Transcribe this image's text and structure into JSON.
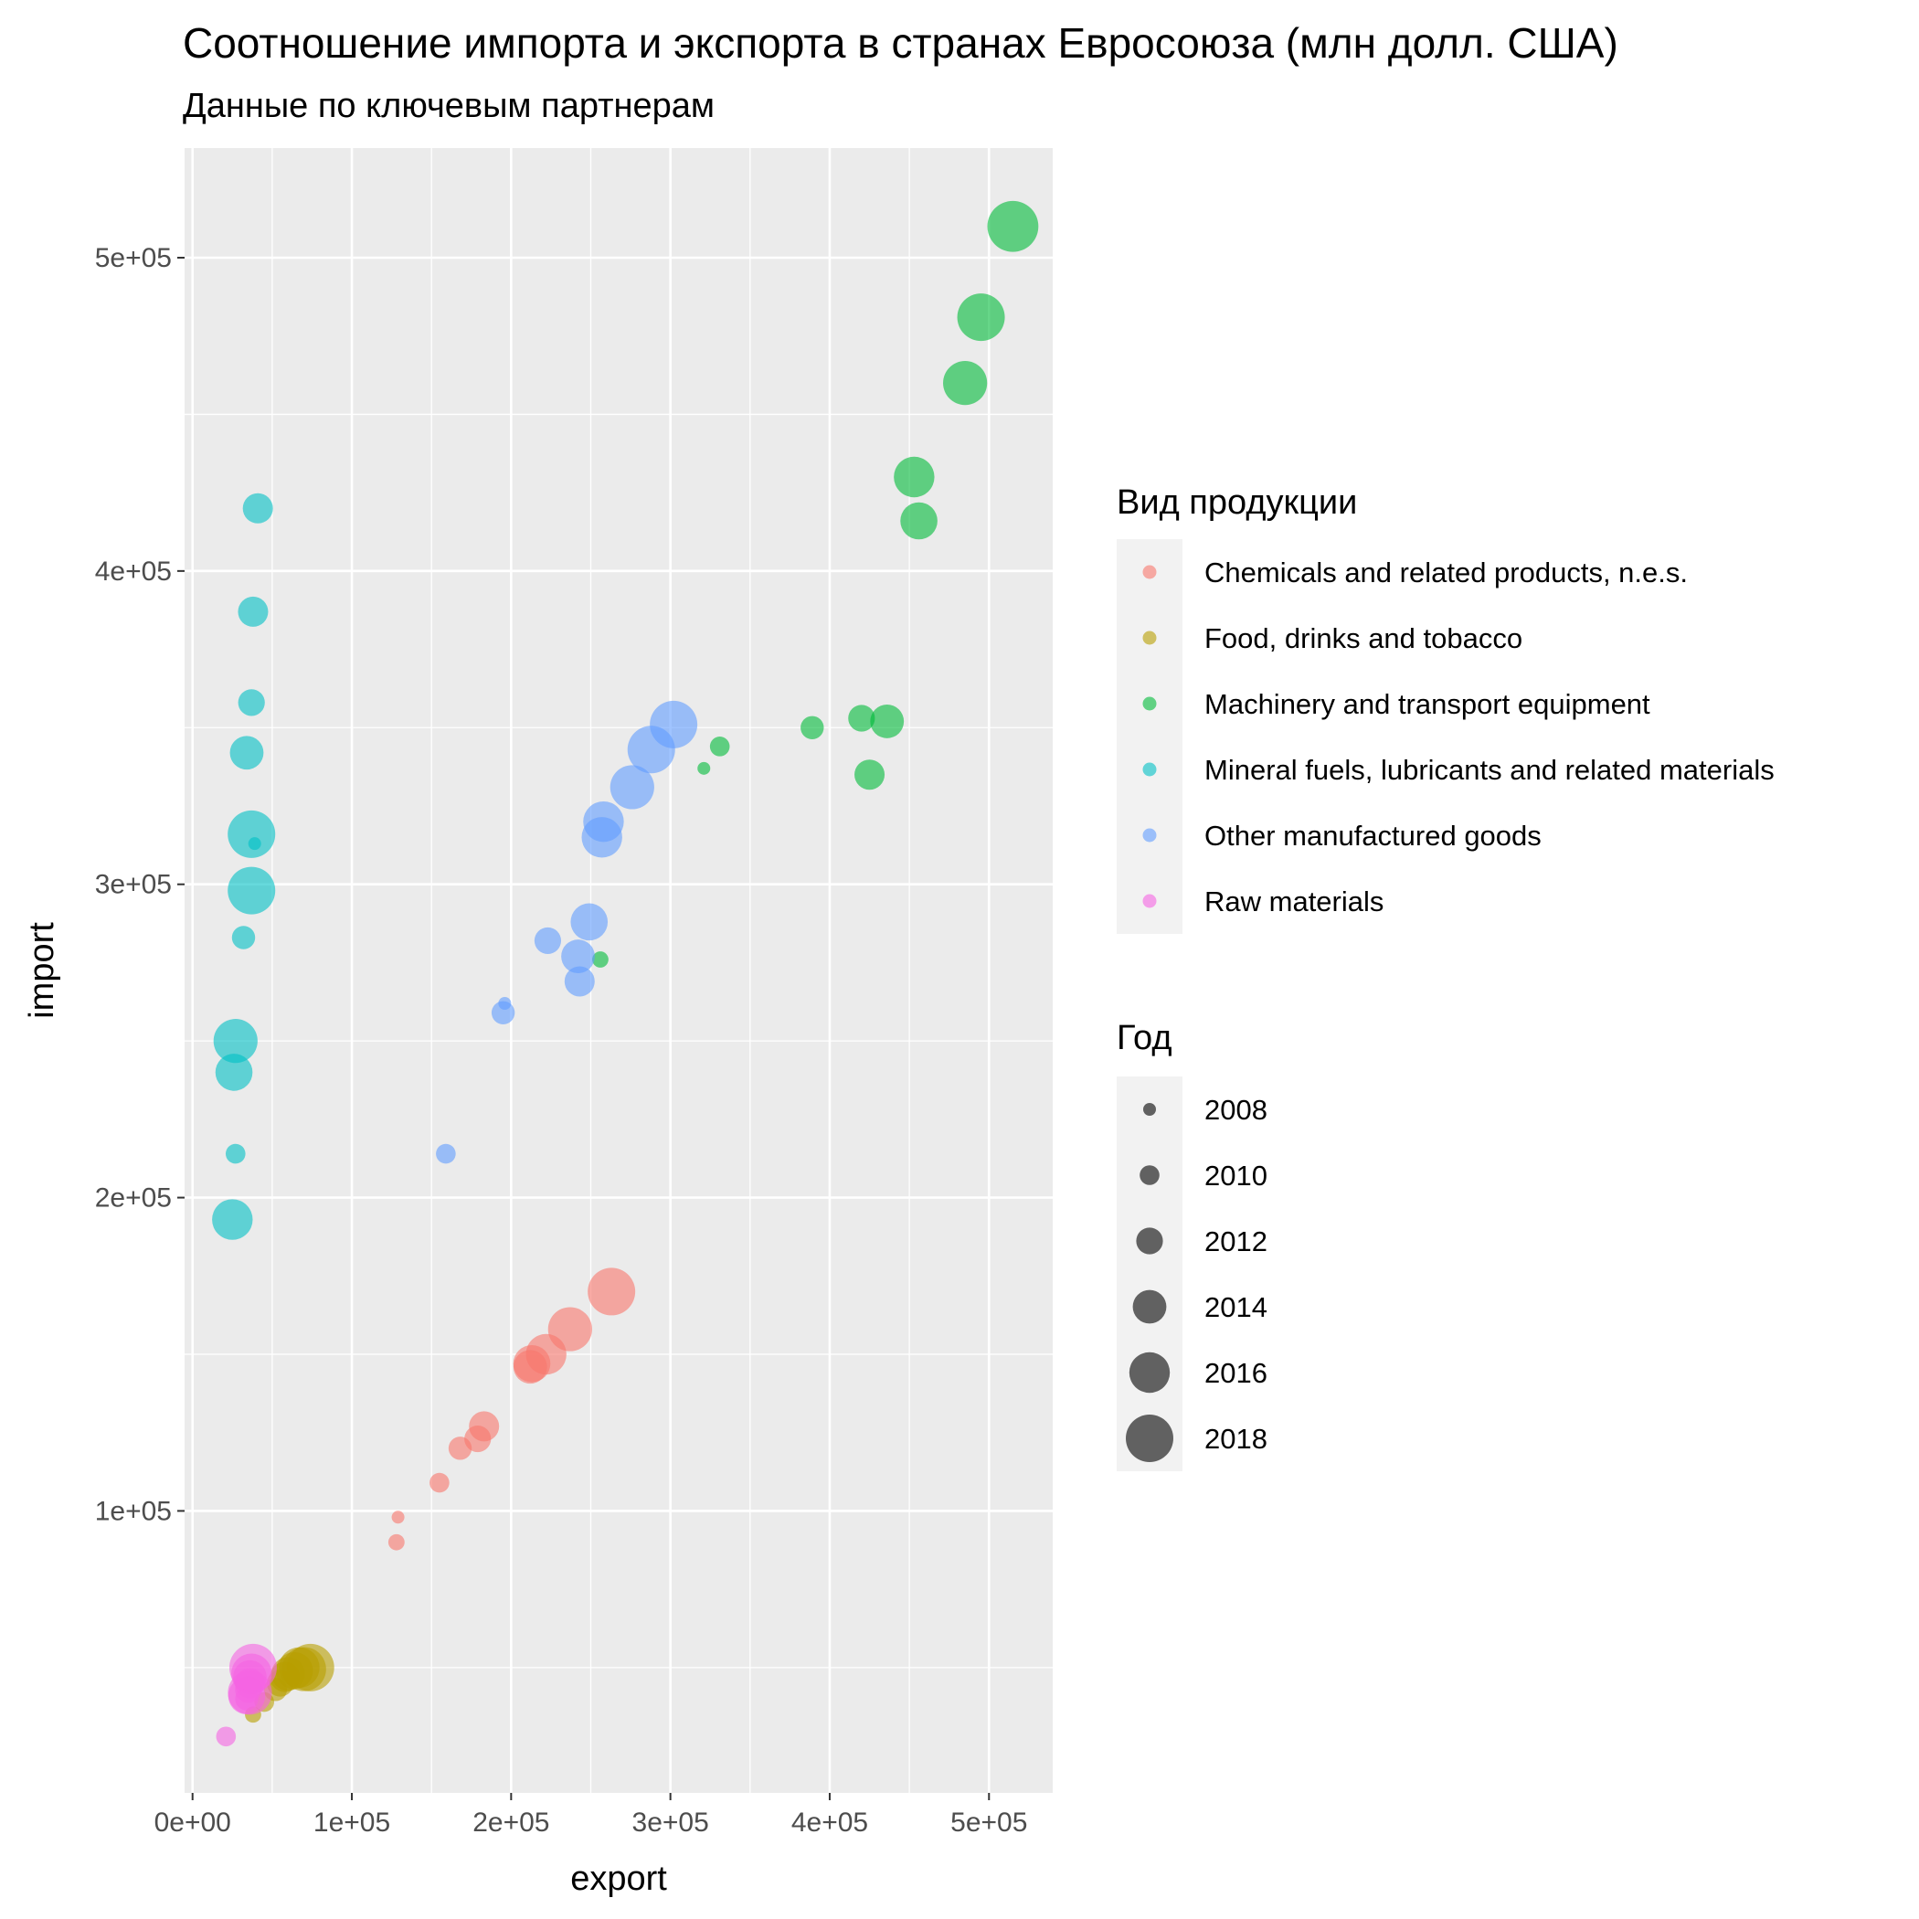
{
  "chart_data": {
    "type": "scatter",
    "title": "Соотношение импорта и экспорта в странах Евросоюза (млн долл. США)",
    "subtitle": "Данные по ключевым партнерам",
    "xlabel": "export",
    "ylabel": "import",
    "xlim": [
      -5000,
      540000
    ],
    "ylim": [
      10000,
      535000
    ],
    "x_ticks": [
      0,
      100000,
      200000,
      300000,
      400000,
      500000
    ],
    "x_tick_labels": [
      "0e+00",
      "1e+05",
      "2e+05",
      "3e+05",
      "4e+05",
      "5e+05"
    ],
    "y_ticks": [
      100000,
      200000,
      300000,
      400000,
      500000
    ],
    "y_tick_labels": [
      "1e+05",
      "2e+05",
      "3e+05",
      "4e+05",
      "5e+05"
    ],
    "grid": true,
    "panel_background": "#ebebeb",
    "point_alpha": 0.6,
    "color_legend": {
      "title": "Вид продукции",
      "placement": "right"
    },
    "size_legend": {
      "title": "Год",
      "placement": "right",
      "years": [
        2008,
        2010,
        2012,
        2014,
        2016,
        2018
      ],
      "labels": [
        "2008",
        "2010",
        "2012",
        "2014",
        "2016",
        "2018"
      ]
    },
    "series": [
      {
        "name": "Chemicals and related products, n.e.s.",
        "color": "#F8766D",
        "points": [
          {
            "x": 129000,
            "y": 98000,
            "year": 2008
          },
          {
            "x": 128000,
            "y": 90000,
            "year": 2009
          },
          {
            "x": 155000,
            "y": 109000,
            "year": 2010
          },
          {
            "x": 168000,
            "y": 120000,
            "year": 2011
          },
          {
            "x": 179000,
            "y": 123000,
            "year": 2012
          },
          {
            "x": 183000,
            "y": 127000,
            "year": 2013
          },
          {
            "x": 212000,
            "y": 146000,
            "year": 2014
          },
          {
            "x": 213000,
            "y": 147000,
            "year": 2015
          },
          {
            "x": 222000,
            "y": 150000,
            "year": 2016
          },
          {
            "x": 237000,
            "y": 158000,
            "year": 2017
          },
          {
            "x": 263000,
            "y": 170000,
            "year": 2018
          }
        ]
      },
      {
        "name": "Food, drinks and tobacco",
        "color": "#B79F00",
        "points": [
          {
            "x": 38000,
            "y": 35000,
            "year": 2009
          },
          {
            "x": 45000,
            "y": 39000,
            "year": 2010
          },
          {
            "x": 52000,
            "y": 43000,
            "year": 2011
          },
          {
            "x": 55000,
            "y": 45000,
            "year": 2012
          },
          {
            "x": 58000,
            "y": 47000,
            "year": 2013
          },
          {
            "x": 60000,
            "y": 48000,
            "year": 2014
          },
          {
            "x": 64000,
            "y": 49000,
            "year": 2015
          },
          {
            "x": 67000,
            "y": 50000,
            "year": 2016
          },
          {
            "x": 70000,
            "y": 49500,
            "year": 2017
          },
          {
            "x": 74000,
            "y": 50000,
            "year": 2018
          }
        ]
      },
      {
        "name": "Machinery and transport equipment",
        "color": "#00BA38",
        "points": [
          {
            "x": 321000,
            "y": 337000,
            "year": 2008
          },
          {
            "x": 256000,
            "y": 276000,
            "year": 2009
          },
          {
            "x": 331000,
            "y": 344000,
            "year": 2010
          },
          {
            "x": 389000,
            "y": 350000,
            "year": 2011
          },
          {
            "x": 420000,
            "y": 353000,
            "year": 2012
          },
          {
            "x": 425000,
            "y": 335000,
            "year": 2013
          },
          {
            "x": 436000,
            "y": 352000,
            "year": 2014
          },
          {
            "x": 456000,
            "y": 416000,
            "year": 2015
          },
          {
            "x": 453000,
            "y": 430000,
            "year": 2016
          },
          {
            "x": 485000,
            "y": 460000,
            "year": 2017
          },
          {
            "x": 495000,
            "y": 481000,
            "year": 2018
          },
          {
            "x": 515000,
            "y": 510000,
            "year": 2019
          }
        ]
      },
      {
        "name": "Mineral fuels, lubricants and related materials",
        "color": "#00BFC4",
        "points": [
          {
            "x": 39000,
            "y": 313000,
            "year": 2008
          },
          {
            "x": 27000,
            "y": 214000,
            "year": 2010
          },
          {
            "x": 32000,
            "y": 283000,
            "year": 2011
          },
          {
            "x": 37000,
            "y": 358000,
            "year": 2012
          },
          {
            "x": 41000,
            "y": 420000,
            "year": 2013
          },
          {
            "x": 38000,
            "y": 387000,
            "year": 2013
          },
          {
            "x": 34000,
            "y": 342000,
            "year": 2014
          },
          {
            "x": 26000,
            "y": 240000,
            "year": 2015
          },
          {
            "x": 25000,
            "y": 193000,
            "year": 2016
          },
          {
            "x": 27000,
            "y": 250000,
            "year": 2017
          },
          {
            "x": 37000,
            "y": 298000,
            "year": 2018
          },
          {
            "x": 37000,
            "y": 316000,
            "year": 2018
          }
        ]
      },
      {
        "name": "Other manufactured goods",
        "color": "#619CFF",
        "points": [
          {
            "x": 196000,
            "y": 262000,
            "year": 2008
          },
          {
            "x": 159000,
            "y": 214000,
            "year": 2010
          },
          {
            "x": 195000,
            "y": 259000,
            "year": 2011
          },
          {
            "x": 223000,
            "y": 282000,
            "year": 2012
          },
          {
            "x": 243000,
            "y": 269000,
            "year": 2013
          },
          {
            "x": 242000,
            "y": 277000,
            "year": 2014
          },
          {
            "x": 249000,
            "y": 288000,
            "year": 2015
          },
          {
            "x": 257000,
            "y": 315000,
            "year": 2016
          },
          {
            "x": 258000,
            "y": 320000,
            "year": 2016
          },
          {
            "x": 276000,
            "y": 331000,
            "year": 2017
          },
          {
            "x": 288000,
            "y": 343000,
            "year": 2018
          },
          {
            "x": 302000,
            "y": 351000,
            "year": 2018
          }
        ]
      },
      {
        "name": "Raw materials",
        "color": "#F564E3",
        "points": [
          {
            "x": 21000,
            "y": 28000,
            "year": 2010
          },
          {
            "x": 34000,
            "y": 40000,
            "year": 2011
          },
          {
            "x": 35000,
            "y": 43000,
            "year": 2012
          },
          {
            "x": 36000,
            "y": 45000,
            "year": 2013
          },
          {
            "x": 36000,
            "y": 47000,
            "year": 2014
          },
          {
            "x": 34000,
            "y": 41000,
            "year": 2015
          },
          {
            "x": 37000,
            "y": 48000,
            "year": 2016
          },
          {
            "x": 36000,
            "y": 42000,
            "year": 2017
          },
          {
            "x": 38000,
            "y": 50000,
            "year": 2018
          }
        ]
      }
    ]
  }
}
